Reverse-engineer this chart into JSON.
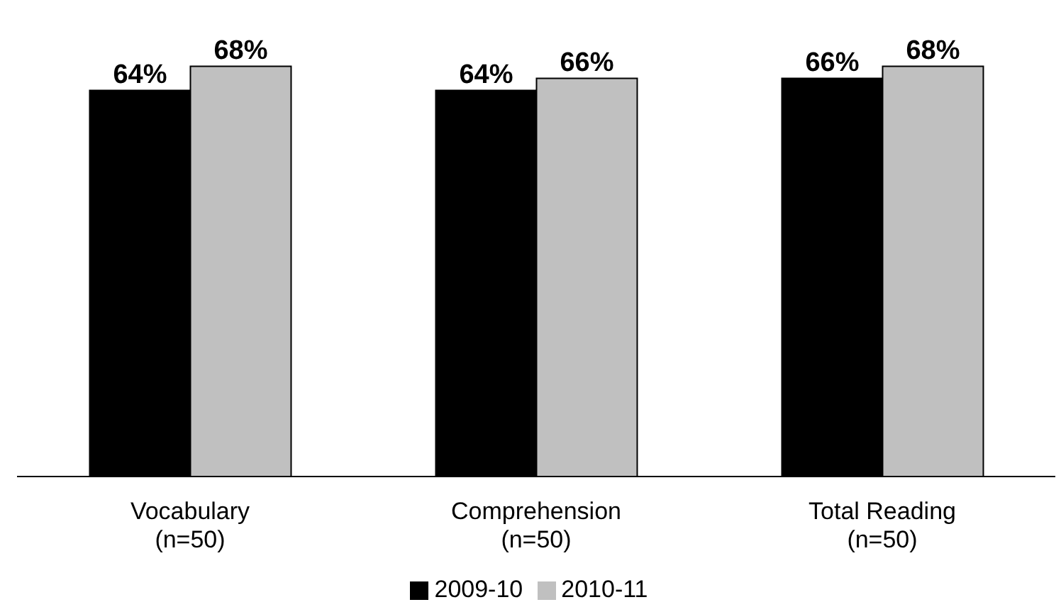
{
  "chart_data": {
    "type": "bar",
    "categories": [
      "Vocabulary\n(n=50)",
      "Comprehension\n(n=50)",
      "Total Reading\n(n=50)"
    ],
    "series": [
      {
        "name": "2009-10",
        "color": "#000000",
        "values": [
          64,
          64,
          66
        ],
        "value_labels": [
          "64%",
          "64%",
          "66%"
        ]
      },
      {
        "name": "2010-11",
        "color": "#c0c0c0",
        "values": [
          68,
          66,
          68
        ],
        "value_labels": [
          "68%",
          "66%",
          "68%"
        ]
      }
    ],
    "legend": "bottom",
    "grid": false
  }
}
